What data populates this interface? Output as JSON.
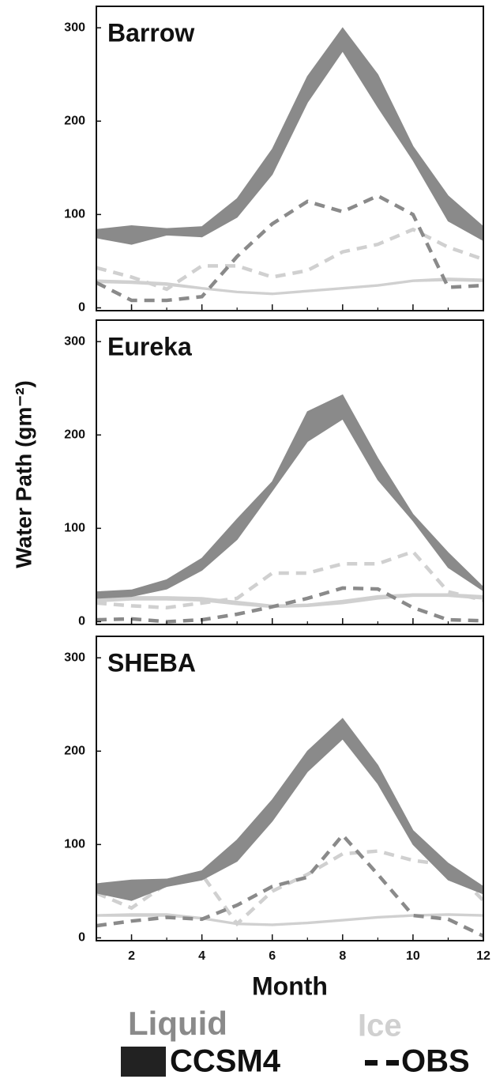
{
  "chart_data": [
    {
      "type": "band-line",
      "title": "Barrow",
      "x": [
        1,
        2,
        3,
        4,
        5,
        6,
        7,
        8,
        9,
        10,
        11,
        12
      ],
      "xlim": [
        1,
        12
      ],
      "xticks": [
        2,
        4,
        6,
        8,
        10,
        12
      ],
      "ylim": [
        -3,
        323
      ],
      "yticks": [
        0,
        100,
        200,
        300
      ],
      "liquid": {
        "ccsm4_low": [
          75,
          68,
          78,
          76,
          97,
          143,
          220,
          275,
          215,
          158,
          93,
          72
        ],
        "ccsm4_high": [
          84,
          88,
          85,
          87,
          117,
          170,
          248,
          300,
          250,
          173,
          120,
          87
        ],
        "obs": [
          27,
          8,
          8,
          12,
          55,
          90,
          114,
          103,
          120,
          100,
          22,
          24
        ]
      },
      "ice": {
        "ccsm4_low": [
          27,
          26,
          24,
          20,
          16,
          14,
          17,
          20,
          23,
          28,
          29,
          28
        ],
        "ccsm4_high": [
          30,
          29,
          27,
          22,
          18,
          16,
          19,
          22,
          25,
          30,
          32,
          31
        ],
        "obs": [
          43,
          33,
          20,
          45,
          45,
          33,
          40,
          60,
          68,
          84,
          65,
          52
        ]
      }
    },
    {
      "type": "band-line",
      "title": "Eureka",
      "x": [
        1,
        2,
        3,
        4,
        5,
        6,
        7,
        8,
        9,
        10,
        11,
        12
      ],
      "xlim": [
        1,
        12
      ],
      "xticks": [
        2,
        4,
        6,
        8,
        10,
        12
      ],
      "ylim": [
        -3,
        323
      ],
      "yticks": [
        0,
        100,
        200,
        300
      ],
      "liquid": {
        "ccsm4_low": [
          25,
          27,
          35,
          55,
          88,
          140,
          193,
          217,
          152,
          108,
          58,
          33
        ],
        "ccsm4_high": [
          32,
          34,
          45,
          68,
          110,
          150,
          225,
          243,
          175,
          115,
          74,
          37
        ],
        "obs": [
          2,
          3,
          0,
          2,
          8,
          16,
          25,
          36,
          35,
          15,
          2,
          1
        ]
      },
      "ice": {
        "ccsm4_low": [
          21,
          23,
          23,
          22,
          18,
          15,
          16,
          19,
          24,
          27,
          27,
          24
        ],
        "ccsm4_high": [
          25,
          27,
          27,
          26,
          22,
          18,
          19,
          23,
          28,
          30,
          30,
          28
        ],
        "obs": [
          20,
          17,
          15,
          20,
          25,
          52,
          52,
          62,
          62,
          75,
          32,
          23
        ]
      }
    },
    {
      "type": "band-line",
      "title": "SHEBA",
      "x": [
        1,
        2,
        3,
        4,
        5,
        6,
        7,
        8,
        9,
        10,
        11,
        12
      ],
      "xlim": [
        1,
        12
      ],
      "xticks": [
        2,
        4,
        6,
        8,
        10,
        12
      ],
      "ylim": [
        -3,
        323
      ],
      "yticks": [
        0,
        100,
        200,
        300
      ],
      "xlabel": "Month",
      "liquid": {
        "ccsm4_low": [
          48,
          40,
          55,
          62,
          82,
          125,
          178,
          213,
          165,
          100,
          62,
          47
        ],
        "ccsm4_high": [
          58,
          62,
          63,
          72,
          105,
          148,
          200,
          235,
          185,
          115,
          80,
          55
        ],
        "obs": [
          13,
          18,
          22,
          20,
          35,
          55,
          65,
          110,
          68,
          24,
          20,
          2
        ]
      },
      "ice": {
        "ccsm4_low": [
          23,
          23,
          23,
          20,
          14,
          13,
          15,
          18,
          21,
          23,
          24,
          23
        ],
        "ccsm4_high": [
          25,
          26,
          26,
          22,
          16,
          15,
          17,
          20,
          23,
          25,
          26,
          25
        ],
        "obs": [
          48,
          32,
          58,
          68,
          15,
          50,
          68,
          90,
          93,
          83,
          78,
          40
        ]
      }
    }
  ],
  "ylabel": "Water Path (gm⁻²)",
  "legend": {
    "liquid": {
      "label": "Liquid",
      "color": "#8a8a8a"
    },
    "ice": {
      "label": "Ice",
      "color": "#d0d0d0"
    },
    "ccsm4": {
      "label": "CCSM4",
      "color": "#222222"
    },
    "obs": {
      "label": "OBS",
      "dash": "13 9"
    }
  }
}
